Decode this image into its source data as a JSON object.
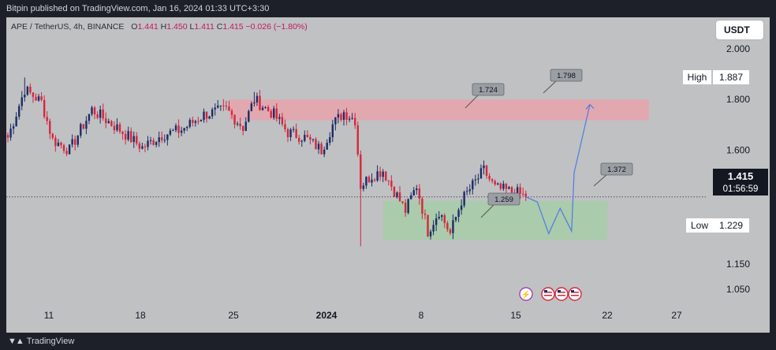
{
  "header": {
    "published": "Bitpin published on TradingView.com, Jan 16, 2024 01:33 UTC+3:30"
  },
  "legend": {
    "symbol": "APE / TetherUS, 4h, BINANCE",
    "open_label": "O",
    "open": "1.441",
    "high_label": "H",
    "high": "1.450",
    "low_label": "L",
    "low": "1.411",
    "close_label": "C",
    "close": "1.415",
    "change": "−0.026 (−1.80%)"
  },
  "currency": "USDT",
  "footer": {
    "brand": "TradingView",
    "logo": "tv-logo-icon"
  },
  "colors": {
    "up": "#1c2c66",
    "down": "#d7263d",
    "resistance_zone": "#e7a3ad",
    "support_zone": "#a7ccaa",
    "projection": "#4f7be0",
    "callout": "#9a9ea5"
  },
  "chart_data": {
    "type": "candlestick",
    "ylim": [
      0.97,
      2.08
    ],
    "y_ticks": [
      "2.000",
      "1.800",
      "1.600",
      "1.150",
      "1.050"
    ],
    "x_ticks": [
      "11",
      "18",
      "25",
      "2024",
      "8",
      "15",
      "22",
      "27"
    ],
    "last_price": {
      "value": "1.415",
      "countdown": "01:56:59"
    },
    "high_marker": {
      "label": "High",
      "value": "1.887"
    },
    "low_marker": {
      "label": "Low",
      "value": "1.229"
    },
    "zones": [
      {
        "name": "resistance",
        "low": 1.718,
        "high": 1.8
      },
      {
        "name": "support",
        "low": 1.245,
        "high": 1.4
      }
    ],
    "callouts": [
      {
        "text": "1.724",
        "price": 1.724
      },
      {
        "text": "1.798",
        "price": 1.798
      },
      {
        "text": "1.372",
        "price": 1.372
      },
      {
        "text": "1.259",
        "price": 1.259
      }
    ],
    "projection_path": [
      1.415,
      1.395,
      1.27,
      1.37,
      1.28,
      1.51,
      1.78
    ],
    "anchors": [
      {
        "i": 0,
        "p": 1.65
      },
      {
        "i": 6,
        "p": 1.84
      },
      {
        "i": 12,
        "p": 1.79
      },
      {
        "i": 16,
        "p": 1.64
      },
      {
        "i": 22,
        "p": 1.6
      },
      {
        "i": 30,
        "p": 1.76
      },
      {
        "i": 40,
        "p": 1.68
      },
      {
        "i": 48,
        "p": 1.61
      },
      {
        "i": 55,
        "p": 1.66
      },
      {
        "i": 62,
        "p": 1.68
      },
      {
        "i": 70,
        "p": 1.74
      },
      {
        "i": 78,
        "p": 1.76
      },
      {
        "i": 84,
        "p": 1.69
      },
      {
        "i": 88,
        "p": 1.8
      },
      {
        "i": 95,
        "p": 1.74
      },
      {
        "i": 100,
        "p": 1.67
      },
      {
        "i": 106,
        "p": 1.65
      },
      {
        "i": 112,
        "p": 1.6
      },
      {
        "i": 116,
        "p": 1.7
      },
      {
        "i": 120,
        "p": 1.75
      },
      {
        "i": 124,
        "p": 1.72
      },
      {
        "i": 126,
        "p": 1.46
      },
      {
        "i": 130,
        "p": 1.5
      },
      {
        "i": 134,
        "p": 1.52
      },
      {
        "i": 138,
        "p": 1.44
      },
      {
        "i": 142,
        "p": 1.36
      },
      {
        "i": 146,
        "p": 1.46
      },
      {
        "i": 150,
        "p": 1.28
      },
      {
        "i": 154,
        "p": 1.36
      },
      {
        "i": 158,
        "p": 1.27
      },
      {
        "i": 162,
        "p": 1.4
      },
      {
        "i": 166,
        "p": 1.46
      },
      {
        "i": 170,
        "p": 1.52
      },
      {
        "i": 174,
        "p": 1.45
      },
      {
        "i": 178,
        "p": 1.44
      },
      {
        "i": 182,
        "p": 1.43
      },
      {
        "i": 185,
        "p": 1.415
      }
    ]
  }
}
